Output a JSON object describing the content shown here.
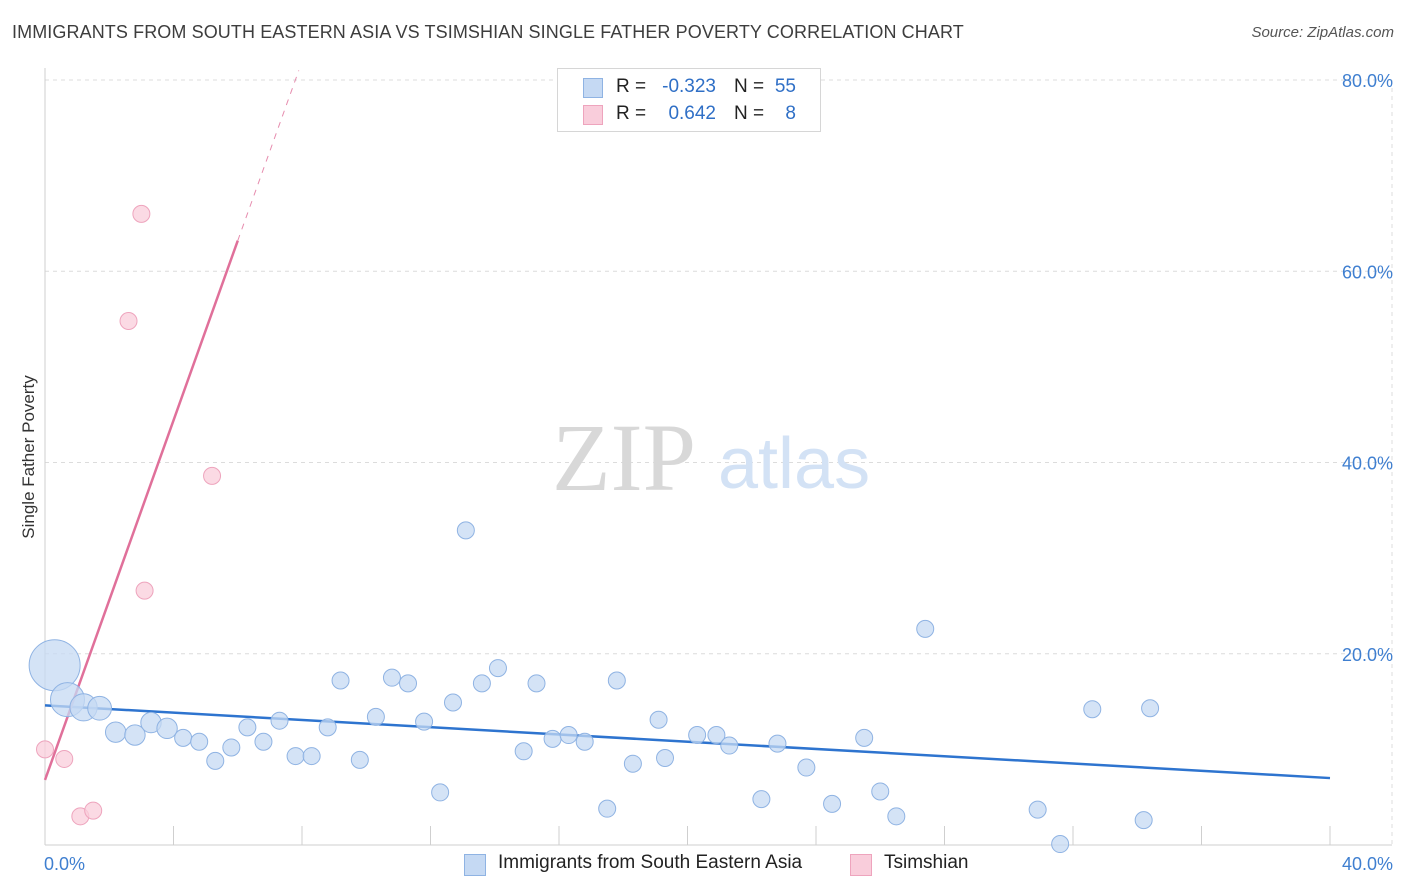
{
  "title": "IMMIGRANTS FROM SOUTH EASTERN ASIA VS TSIMSHIAN SINGLE FATHER POVERTY CORRELATION CHART",
  "source": "Source: ZipAtlas.com",
  "watermark": {
    "zip": "ZIP",
    "atlas": "atlas"
  },
  "legend": {
    "rows": [
      {
        "r_label": "R =",
        "r_value": "-0.323",
        "n_label": "N =",
        "n_value": "55"
      },
      {
        "r_label": "R =",
        "r_value": "0.642",
        "n_label": "N =",
        "n_value": "8"
      }
    ]
  },
  "bottom_legend": [
    "Immigrants from South Eastern Asia",
    "Tsimshian"
  ],
  "colors": {
    "blue_fill": "#c5d9f3",
    "blue_stroke": "#8fb3e3",
    "blue_line": "#2e74cf",
    "pink_fill": "#f9cddb",
    "pink_stroke": "#eea4bd",
    "pink_line": "#e0709a",
    "grid": "#dcdcdc",
    "tick_text": "#3f7fd0"
  },
  "chart_data": {
    "type": "scatter",
    "title": "IMMIGRANTS FROM SOUTH EASTERN ASIA VS TSIMSHIAN SINGLE FATHER POVERTY CORRELATION CHART",
    "xlabel": "",
    "ylabel": "Single Father Poverty",
    "xlim": [
      0,
      40
    ],
    "ylim": [
      0,
      80
    ],
    "x_tick_labels": [
      "0.0%",
      "40.0%"
    ],
    "y_ticks": [
      20,
      40,
      60,
      80
    ],
    "y_tick_labels": [
      "20.0%",
      "40.0%",
      "60.0%",
      "80.0%"
    ],
    "grid": true,
    "series": [
      {
        "name": "Immigrants from South Eastern Asia",
        "color": "#8fb3e3",
        "r": -0.323,
        "n": 55,
        "points": [
          [
            0.3,
            18.8,
            3
          ],
          [
            0.7,
            15.2,
            2
          ],
          [
            1.2,
            14.4,
            1.6
          ],
          [
            1.7,
            14.3,
            1.4
          ],
          [
            2.2,
            11.8,
            1.2
          ],
          [
            2.8,
            11.5,
            1.2
          ],
          [
            3.3,
            12.8,
            1.2
          ],
          [
            3.8,
            12.2,
            1.2
          ],
          [
            4.3,
            11.2,
            1
          ],
          [
            4.8,
            10.8,
            1
          ],
          [
            5.3,
            8.8,
            1
          ],
          [
            5.8,
            10.2,
            1
          ],
          [
            6.3,
            12.3,
            1
          ],
          [
            6.8,
            10.8,
            1
          ],
          [
            7.3,
            13.0,
            1
          ],
          [
            7.8,
            9.3,
            1
          ],
          [
            8.3,
            9.3,
            1
          ],
          [
            8.8,
            12.3,
            1
          ],
          [
            9.2,
            17.2,
            1
          ],
          [
            9.8,
            8.9,
            1
          ],
          [
            10.3,
            13.4,
            1
          ],
          [
            10.8,
            17.5,
            1
          ],
          [
            11.3,
            16.9,
            1
          ],
          [
            11.8,
            12.9,
            1
          ],
          [
            12.3,
            5.5,
            1
          ],
          [
            12.7,
            14.9,
            1
          ],
          [
            13.1,
            32.9,
            1
          ],
          [
            13.6,
            16.9,
            1
          ],
          [
            14.1,
            18.5,
            1
          ],
          [
            14.9,
            9.8,
            1
          ],
          [
            15.3,
            16.9,
            1
          ],
          [
            15.8,
            11.1,
            1
          ],
          [
            16.3,
            11.5,
            1
          ],
          [
            16.8,
            10.8,
            1
          ],
          [
            17.5,
            3.8,
            1
          ],
          [
            17.8,
            17.2,
            1
          ],
          [
            18.3,
            8.5,
            1
          ],
          [
            19.1,
            13.1,
            1
          ],
          [
            19.3,
            9.1,
            1
          ],
          [
            20.3,
            11.5,
            1
          ],
          [
            20.9,
            11.5,
            1
          ],
          [
            21.3,
            10.4,
            1
          ],
          [
            22.3,
            4.8,
            1
          ],
          [
            22.8,
            10.6,
            1
          ],
          [
            23.7,
            8.1,
            1
          ],
          [
            24.5,
            4.3,
            1
          ],
          [
            25.5,
            11.2,
            1
          ],
          [
            26.0,
            5.6,
            1
          ],
          [
            26.5,
            3.0,
            1
          ],
          [
            27.4,
            22.6,
            1
          ],
          [
            30.9,
            3.7,
            1
          ],
          [
            31.6,
            0.1,
            1
          ],
          [
            32.6,
            14.2,
            1
          ],
          [
            34.4,
            14.3,
            1
          ],
          [
            34.2,
            2.6,
            1
          ]
        ],
        "trend": {
          "x": [
            0,
            40
          ],
          "y": [
            14.6,
            7.0
          ]
        }
      },
      {
        "name": "Tsimshian",
        "color": "#eea4bd",
        "r": 0.642,
        "n": 8,
        "points": [
          [
            0.0,
            10.0,
            1
          ],
          [
            0.6,
            9.0,
            1
          ],
          [
            1.1,
            3.0,
            1
          ],
          [
            1.5,
            3.6,
            1
          ],
          [
            2.6,
            54.8,
            1
          ],
          [
            3.0,
            66.0,
            1
          ],
          [
            3.1,
            26.6,
            1
          ],
          [
            5.2,
            38.6,
            1
          ]
        ],
        "trend": {
          "x": [
            0,
            6.0
          ],
          "y": [
            6.8,
            63.2
          ]
        },
        "trend_extension": {
          "x": [
            6.0,
            7.9
          ],
          "y": [
            63.2,
            81.0
          ]
        }
      }
    ]
  }
}
